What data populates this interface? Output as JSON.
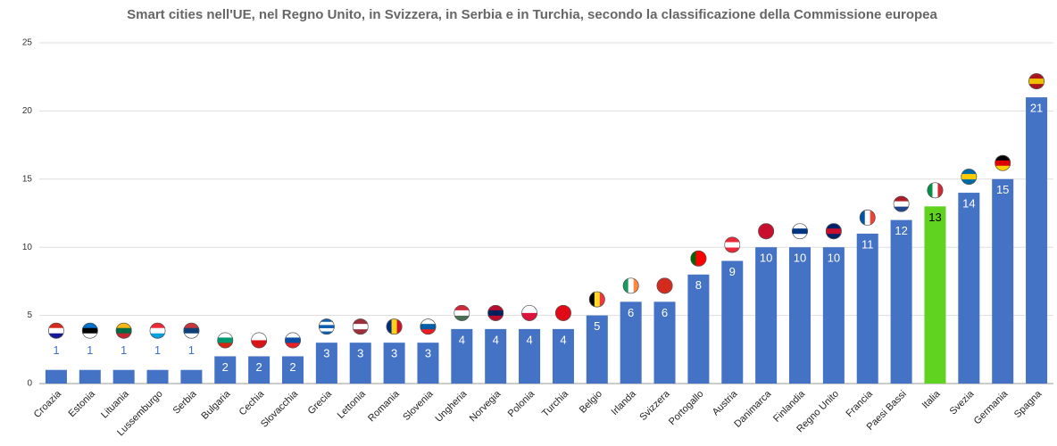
{
  "chart_data": {
    "type": "bar",
    "title": "Smart cities nell'UE, nel Regno Unito, in Svizzera, in Serbia e in Turchia, secondo la classificazione della Commissione europea",
    "categories": [
      "Croazia",
      "Estonia",
      "Lituania",
      "Lussemburgo",
      "Serbia",
      "Bulgaria",
      "Cechia",
      "Slovacchia",
      "Grecia",
      "Lettonia",
      "Romania",
      "Slovenia",
      "Ungheria",
      "Norvegia",
      "Polonia",
      "Turchia",
      "Belgio",
      "Irlanda",
      "Svizzera",
      "Portogallo",
      "Austria",
      "Danimarca",
      "Finlandia",
      "Regno Unito",
      "Francia",
      "Paesi Bassi",
      "Italia",
      "Svezia",
      "Germania",
      "Spagna"
    ],
    "values": [
      1,
      1,
      1,
      1,
      1,
      2,
      2,
      2,
      3,
      3,
      3,
      3,
      4,
      4,
      4,
      4,
      5,
      6,
      6,
      8,
      9,
      10,
      10,
      10,
      11,
      12,
      13,
      14,
      15,
      21
    ],
    "colors": [
      "#4472c4",
      "#4472c4",
      "#4472c4",
      "#4472c4",
      "#4472c4",
      "#4472c4",
      "#4472c4",
      "#4472c4",
      "#4472c4",
      "#4472c4",
      "#4472c4",
      "#4472c4",
      "#4472c4",
      "#4472c4",
      "#4472c4",
      "#4472c4",
      "#4472c4",
      "#4472c4",
      "#4472c4",
      "#4472c4",
      "#4472c4",
      "#4472c4",
      "#4472c4",
      "#4472c4",
      "#4472c4",
      "#4472c4",
      "#5fd31f",
      "#4472c4",
      "#4472c4",
      "#4472c4"
    ],
    "ylim": [
      0,
      25
    ],
    "yticks": [
      0,
      5,
      10,
      15,
      20,
      25
    ],
    "grid": true
  }
}
